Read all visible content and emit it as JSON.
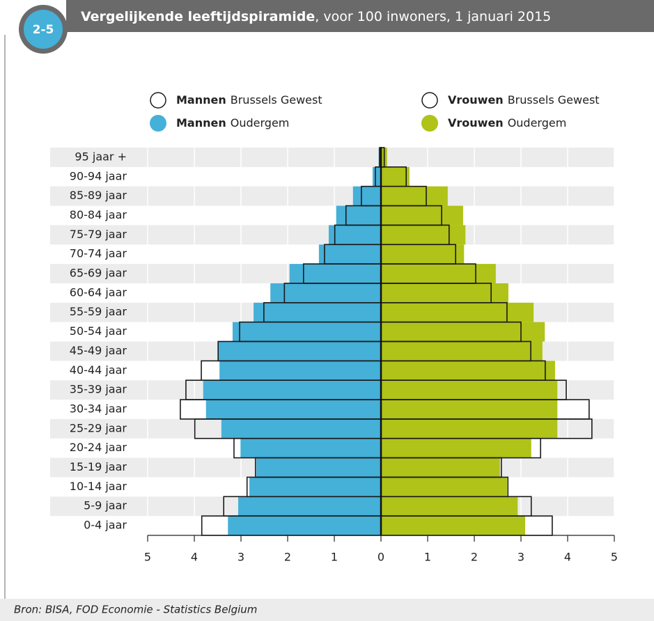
{
  "chart_data": {
    "type": "pyramid",
    "badge": "2-5",
    "title": "Vergelijkende leeftijdspiramide",
    "subtitle": ", voor 100 inwoners, 1 januari 2015",
    "categories": [
      "95 jaar +",
      "90-94 jaar",
      "85-89 jaar",
      "80-84 jaar",
      "75-79 jaar",
      "70-74 jaar",
      "65-69 jaar",
      "60-64 jaar",
      "55-59 jaar",
      "50-54 jaar",
      "45-49 jaar",
      "40-44 jaar",
      "35-39 jaar",
      "30-34 jaar",
      "25-29 jaar",
      "20-24 jaar",
      "15-19 jaar",
      "10-14 jaar",
      "5-9 jaar",
      "0-4 jaar"
    ],
    "series": [
      {
        "name": "Mannen",
        "region": "Oudergem",
        "style": "filled",
        "color": "#45b0d8",
        "values": [
          -0.05,
          -0.18,
          -0.6,
          -0.96,
          -1.12,
          -1.33,
          -1.96,
          -2.37,
          -2.73,
          -3.18,
          -3.49,
          -3.46,
          -3.81,
          -3.75,
          -3.42,
          -3.01,
          -2.67,
          -2.82,
          -3.06,
          -3.28
        ]
      },
      {
        "name": "Vrouwen",
        "region": "Oudergem",
        "style": "filled",
        "color": "#afc318",
        "values": [
          0.13,
          0.61,
          1.43,
          1.76,
          1.81,
          1.78,
          2.46,
          2.73,
          3.27,
          3.51,
          3.46,
          3.73,
          3.78,
          3.78,
          3.78,
          3.22,
          2.55,
          2.7,
          2.93,
          3.09
        ]
      },
      {
        "name": "Mannen",
        "region": "Brussels Gewest",
        "style": "outline",
        "color": "#1a1a1a",
        "values": [
          -0.03,
          -0.12,
          -0.42,
          -0.75,
          -0.99,
          -1.21,
          -1.66,
          -2.07,
          -2.51,
          -3.03,
          -3.49,
          -3.85,
          -4.18,
          -4.3,
          -3.99,
          -3.15,
          -2.69,
          -2.87,
          -3.37,
          -3.84
        ]
      },
      {
        "name": "Vrouwen",
        "region": "Brussels Gewest",
        "style": "outline",
        "color": "#1a1a1a",
        "values": [
          0.07,
          0.54,
          0.97,
          1.3,
          1.46,
          1.6,
          2.03,
          2.36,
          2.7,
          3.0,
          3.21,
          3.52,
          3.97,
          4.46,
          4.52,
          3.42,
          2.58,
          2.72,
          3.22,
          3.67
        ]
      }
    ],
    "xlim": [
      -5,
      5
    ],
    "xticks": [
      {
        "value": -5,
        "label": "5"
      },
      {
        "value": -4,
        "label": "4"
      },
      {
        "value": -3,
        "label": "3"
      },
      {
        "value": -2,
        "label": "2"
      },
      {
        "value": -1,
        "label": "1"
      },
      0,
      1,
      2,
      3,
      4,
      5
    ],
    "grid": true,
    "source": "Bron: BISA, FOD Economie - Statistics Belgium"
  }
}
